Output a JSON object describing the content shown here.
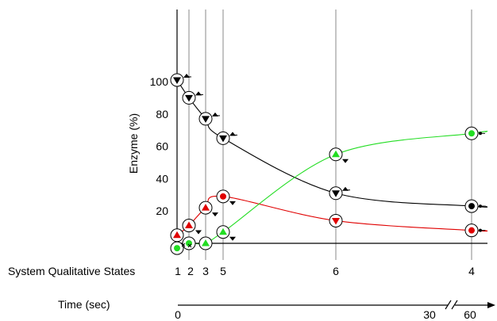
{
  "chart_data": {
    "type": "line",
    "ylabel": "Enzyme (%)",
    "yticks": [
      20,
      40,
      60,
      80,
      100
    ],
    "ylim": [
      0,
      110
    ],
    "states_label": "System Qualitative States",
    "time_label": "Time (sec)",
    "time_ticks": [
      "0",
      "30",
      "60"
    ],
    "axis_break": true,
    "states": [
      {
        "label": "1",
        "t": 0.0
      },
      {
        "label": "2",
        "t": 0.35
      },
      {
        "label": "3",
        "t": 0.9
      },
      {
        "label": "5",
        "t": 1.5
      },
      {
        "label": "6",
        "t": 5.4
      },
      {
        "label": "4",
        "t": 10.2
      }
    ],
    "series": [
      {
        "color": "#000000",
        "points": [
          {
            "t": 0.0,
            "y": 101,
            "marker": "triangle-down",
            "trend": "up"
          },
          {
            "t": 0.35,
            "y": 90,
            "marker": "triangle-down",
            "trend": "up"
          },
          {
            "t": 0.9,
            "y": 77,
            "marker": "triangle-down",
            "trend": "up"
          },
          {
            "t": 1.5,
            "y": 65,
            "marker": "triangle-down",
            "trend": "up"
          },
          {
            "t": 5.4,
            "y": 31,
            "marker": "triangle-down",
            "trend": "up"
          },
          {
            "t": 10.2,
            "y": 23,
            "marker": "dot",
            "trend": "steady"
          }
        ]
      },
      {
        "color": "#e00000",
        "points": [
          {
            "t": 0.0,
            "y": 5,
            "marker": "triangle-up",
            "trend": "none"
          },
          {
            "t": 0.35,
            "y": 11,
            "marker": "triangle-up",
            "trend": "down"
          },
          {
            "t": 0.9,
            "y": 22,
            "marker": "triangle-up",
            "trend": "down"
          },
          {
            "t": 1.5,
            "y": 29,
            "marker": "dot",
            "trend": "down"
          },
          {
            "t": 5.4,
            "y": 14,
            "marker": "triangle-down",
            "trend": "none"
          },
          {
            "t": 10.2,
            "y": 8,
            "marker": "dot",
            "trend": "steady"
          }
        ]
      },
      {
        "color": "#22dd22",
        "points": [
          {
            "t": 0.0,
            "y": -3,
            "marker": "dot",
            "trend": "none"
          },
          {
            "t": 0.35,
            "y": 0,
            "marker": "dot",
            "trend": "none"
          },
          {
            "t": 0.9,
            "y": 0,
            "marker": "triangle-up",
            "trend": "none"
          },
          {
            "t": 1.5,
            "y": 7,
            "marker": "triangle-up",
            "trend": "down"
          },
          {
            "t": 5.4,
            "y": 55,
            "marker": "triangle-up",
            "trend": "down"
          },
          {
            "t": 10.2,
            "y": 68,
            "marker": "dot",
            "trend": "steady"
          }
        ]
      }
    ]
  }
}
